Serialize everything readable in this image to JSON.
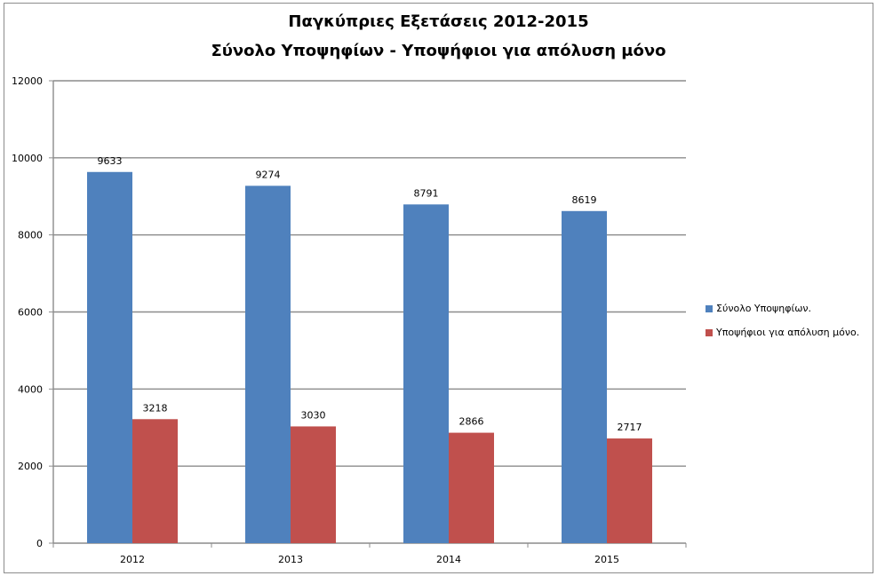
{
  "chart_data": {
    "type": "bar",
    "title": [
      "Παγκύπριες Εξετάσεις 2012-2015",
      "Σύνολο Υποψηφίων - Υποψήφιοι για απόλυση μόνο"
    ],
    "xlabel": "",
    "ylabel": "",
    "categories": [
      "2012",
      "2013",
      "2014",
      "2015"
    ],
    "ylim": [
      0,
      12000
    ],
    "yticks": [
      0,
      2000,
      4000,
      6000,
      8000,
      10000,
      12000
    ],
    "grid": true,
    "legend_position": "right",
    "series": [
      {
        "name": "Σύνολο Υποψηφίων.",
        "color": "#4f81bd",
        "values": [
          9633,
          9274,
          8791,
          8619
        ]
      },
      {
        "name": "Υποψήφιοι για απόλυση μόνο.",
        "color": "#c0504d",
        "values": [
          3218,
          3030,
          2866,
          2717
        ]
      }
    ]
  }
}
